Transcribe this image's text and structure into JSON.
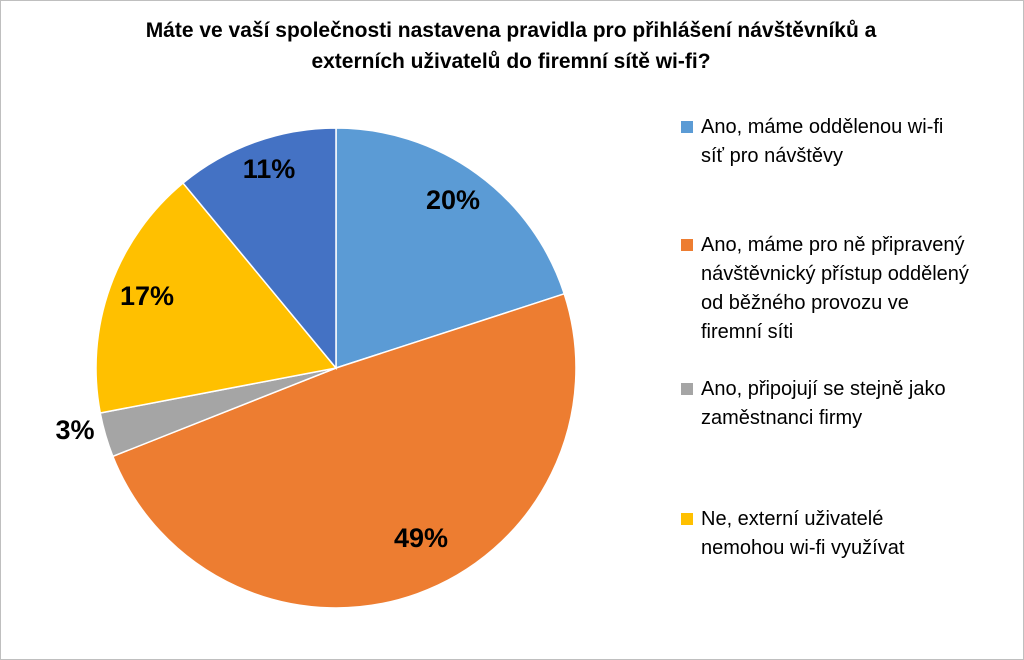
{
  "chart_data": {
    "type": "pie",
    "title_lines": [
      "Máte ve vaší společnosti nastavena pravidla pro přihlášení návštěvníků a",
      "externích uživatelů do firemní sítě wi-fi?"
    ],
    "slices": [
      {
        "label_lines": [
          "Ano, máme oddělenou wi-fi",
          "síť pro návštěvy"
        ],
        "value": 20,
        "display": "20%",
        "color": "#5b9bd5"
      },
      {
        "label_lines": [
          "Ano, máme pro ně připravený",
          "návštěvnický přístup oddělený",
          "od běžného provozu ve",
          "firemní síti"
        ],
        "value": 49,
        "display": "49%",
        "color": "#ed7d31"
      },
      {
        "label_lines": [
          "Ano, připojují se stejně jako",
          "zaměstnanci firmy"
        ],
        "value": 3,
        "display": "3%",
        "color": "#a5a5a5"
      },
      {
        "label_lines": [
          "Ne, externí uživatelé",
          "nemohou wi-fi využívat"
        ],
        "value": 17,
        "display": "17%",
        "color": "#ffc000"
      },
      {
        "label_lines": [],
        "value": 11,
        "display": "11%",
        "color": "#4472c4"
      }
    ],
    "legend_position": "right",
    "start_angle": "12 o'clock",
    "direction": "clockwise"
  }
}
